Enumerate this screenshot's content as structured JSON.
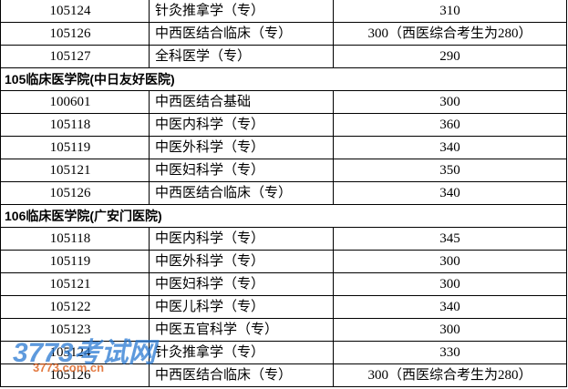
{
  "table": {
    "rows": [
      [
        "105124",
        "针灸推拿学（专）",
        310
      ],
      [
        "105126",
        "中西医结合临床（专）",
        "300（西医综合考生为280）"
      ],
      [
        "105127",
        "全科医学（专）",
        290
      ],
      [
        "105临床医学院(中日友好医院)"
      ],
      [
        "100601",
        "中西医结合基础",
        300
      ],
      [
        "105118",
        "中医内科学（专）",
        360
      ],
      [
        "105119",
        "中医外科学（专）",
        340
      ],
      [
        "105121",
        "中医妇科学（专）",
        350
      ],
      [
        "105126",
        "中西医结合临床（专）",
        340
      ],
      [
        "106临床医学院(广安门医院)"
      ],
      [
        "105118",
        "中医内科学（专）",
        345
      ],
      [
        "105119",
        "中医外科学（专）",
        300
      ],
      [
        "105121",
        "中医妇科学（专）",
        300
      ],
      [
        "105122",
        "中医儿科学（专）",
        340
      ],
      [
        "105123",
        "中医五官科学（专）",
        300
      ],
      [
        "105124",
        "针灸推拿学（专）",
        330
      ],
      [
        "105126",
        "中西医结合临床（专）",
        "300（西医综合考生为280）"
      ]
    ]
  },
  "watermark": {
    "title": "3773考试网",
    "url": "3773.com.cn"
  }
}
